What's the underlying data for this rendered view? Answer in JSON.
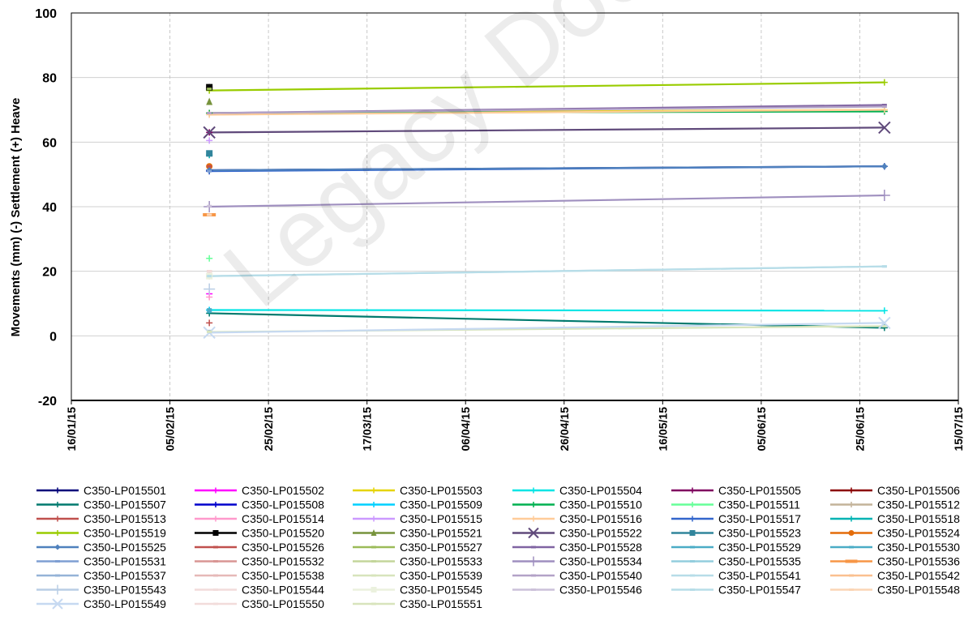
{
  "watermark_text": "Legacy Document",
  "chart_data": {
    "type": "line",
    "title": "",
    "xlabel": "",
    "ylabel": "Movements (mm) (-) Settlement (+) Heave",
    "ylim": [
      -20,
      100
    ],
    "yticks": [
      "-20",
      "0",
      "20",
      "40",
      "60",
      "80",
      "100"
    ],
    "xlim": [
      "2015-01-16",
      "2015-07-15"
    ],
    "xticks": [
      "16/01/15",
      "05/02/15",
      "25/02/15",
      "17/03/15",
      "06/04/15",
      "26/04/15",
      "16/05/15",
      "05/06/15",
      "25/06/15",
      "15/07/15"
    ],
    "grid": true,
    "legend_position": "bottom",
    "series": [
      {
        "name": "C350-LP015501",
        "color": "#00007a",
        "marker": "plus",
        "data": [
          [
            "2015-02-13",
            51.3
          ],
          [
            "2015-06-30",
            52.5
          ]
        ]
      },
      {
        "name": "C350-LP015502",
        "color": "#ff00ff",
        "marker": "plus",
        "data": [
          [
            "2015-02-13",
            13.0
          ]
        ]
      },
      {
        "name": "C350-LP015503",
        "color": "#e6d400",
        "marker": "plus",
        "data": [
          [
            "2015-02-13",
            69.0
          ],
          [
            "2015-06-30",
            70.0
          ]
        ]
      },
      {
        "name": "C350-LP015504",
        "color": "#00e5e5",
        "marker": "plus",
        "data": [
          [
            "2015-02-13",
            8.0
          ],
          [
            "2015-06-30",
            7.8
          ]
        ]
      },
      {
        "name": "C350-LP015505",
        "color": "#800060",
        "marker": "plus",
        "data": [
          [
            "2015-02-13",
            63.0
          ]
        ]
      },
      {
        "name": "C350-LP015506",
        "color": "#8b0000",
        "marker": "plus",
        "data": [
          [
            "2015-02-13",
            77.0
          ]
        ]
      },
      {
        "name": "C350-LP015507",
        "color": "#007a6e",
        "marker": "plus",
        "data": [
          [
            "2015-02-13",
            7.0
          ],
          [
            "2015-06-30",
            2.5
          ]
        ]
      },
      {
        "name": "C350-LP015508",
        "color": "#0000cc",
        "marker": "plus",
        "data": [
          [
            "2015-02-13",
            51.0
          ]
        ]
      },
      {
        "name": "C350-LP015509",
        "color": "#00d0ff",
        "marker": "plus",
        "data": [
          [
            "2015-02-13",
            8.0
          ]
        ]
      },
      {
        "name": "C350-LP015510",
        "color": "#00b050",
        "marker": "plus",
        "data": [
          [
            "2015-02-13",
            69.0
          ],
          [
            "2015-06-30",
            69.5
          ]
        ]
      },
      {
        "name": "C350-LP015511",
        "color": "#66ff99",
        "marker": "plus",
        "data": [
          [
            "2015-02-13",
            24.0
          ]
        ]
      },
      {
        "name": "C350-LP015512",
        "color": "#c4b49a",
        "marker": "plus",
        "data": [
          [
            "2015-02-13",
            18.5
          ]
        ]
      },
      {
        "name": "C350-LP015513",
        "color": "#c0504d",
        "marker": "plus",
        "data": [
          [
            "2015-02-13",
            4.0
          ]
        ]
      },
      {
        "name": "C350-LP015514",
        "color": "#ff99cc",
        "marker": "plus",
        "data": [
          [
            "2015-02-13",
            12.0
          ]
        ]
      },
      {
        "name": "C350-LP015515",
        "color": "#cc99ff",
        "marker": "plus",
        "data": [
          [
            "2015-02-13",
            60.5
          ]
        ]
      },
      {
        "name": "C350-LP015516",
        "color": "#ffcc99",
        "marker": "plus",
        "data": [
          [
            "2015-02-13",
            68.5
          ],
          [
            "2015-06-30",
            70.0
          ]
        ]
      },
      {
        "name": "C350-LP015517",
        "color": "#3366cc",
        "marker": "plus",
        "data": [
          [
            "2015-02-13",
            51.0
          ],
          [
            "2015-06-30",
            52.5
          ]
        ]
      },
      {
        "name": "C350-LP015518",
        "color": "#00b3b3",
        "marker": "plus",
        "data": [
          [
            "2015-02-13",
            56.0
          ]
        ]
      },
      {
        "name": "C350-LP015519",
        "color": "#99cc00",
        "marker": "plus",
        "data": [
          [
            "2015-02-13",
            76.0
          ],
          [
            "2015-06-30",
            78.5
          ]
        ]
      },
      {
        "name": "C350-LP015520",
        "color": "#000000",
        "marker": "square",
        "data": [
          [
            "2015-02-13",
            77.0
          ]
        ]
      },
      {
        "name": "C350-LP015521",
        "color": "#77933c",
        "marker": "triangle",
        "data": [
          [
            "2015-02-13",
            72.5
          ]
        ]
      },
      {
        "name": "C350-LP015522",
        "color": "#604a7b",
        "marker": "x",
        "data": [
          [
            "2015-02-13",
            63.0
          ],
          [
            "2015-06-30",
            64.5
          ]
        ]
      },
      {
        "name": "C350-LP015523",
        "color": "#31859c",
        "marker": "square",
        "data": [
          [
            "2015-02-13",
            56.5
          ]
        ]
      },
      {
        "name": "C350-LP015524",
        "color": "#e46c0a",
        "marker": "circle",
        "data": [
          [
            "2015-02-13",
            52.5
          ]
        ]
      },
      {
        "name": "C350-LP015525",
        "color": "#4f81bd",
        "marker": "diamond",
        "data": [
          [
            "2015-02-13",
            51.3
          ],
          [
            "2015-06-30",
            52.5
          ]
        ]
      },
      {
        "name": "C350-LP015526",
        "color": "#c0504d",
        "marker": "none",
        "data": [
          [
            "2015-02-13",
            52.5
          ]
        ]
      },
      {
        "name": "C350-LP015527",
        "color": "#9bbb59",
        "marker": "none",
        "data": [
          [
            "2015-02-13",
            76.5
          ]
        ]
      },
      {
        "name": "C350-LP015528",
        "color": "#8064a2",
        "marker": "none",
        "data": [
          [
            "2015-02-13",
            69.0
          ],
          [
            "2015-06-30",
            71.5
          ]
        ]
      },
      {
        "name": "C350-LP015529",
        "color": "#4bacc6",
        "marker": "none",
        "data": [
          [
            "2015-02-13",
            8.2
          ]
        ]
      },
      {
        "name": "C350-LP015530",
        "color": "#4aacc6",
        "marker": "none",
        "data": [
          [
            "2015-02-13",
            7.5
          ]
        ]
      },
      {
        "name": "C350-LP015531",
        "color": "#7f9fd3",
        "marker": "none",
        "data": [
          [
            "2015-02-13",
            51.0
          ]
        ]
      },
      {
        "name": "C350-LP015532",
        "color": "#d99694",
        "marker": "none",
        "data": [
          [
            "2015-02-13",
            20.0
          ]
        ]
      },
      {
        "name": "C350-LP015533",
        "color": "#c3d69b",
        "marker": "none",
        "data": [
          [
            "2015-02-13",
            18.3
          ]
        ]
      },
      {
        "name": "C350-LP015534",
        "color": "#9f8fbf",
        "marker": "plus",
        "data": [
          [
            "2015-02-13",
            40.0
          ],
          [
            "2015-06-30",
            43.5
          ]
        ]
      },
      {
        "name": "C350-LP015535",
        "color": "#93cddd",
        "marker": "none",
        "data": [
          [
            "2015-02-13",
            18.5
          ]
        ]
      },
      {
        "name": "C350-LP015536",
        "color": "#f79646",
        "marker": "dash",
        "data": [
          [
            "2015-02-13",
            37.5
          ]
        ]
      },
      {
        "name": "C350-LP015537",
        "color": "#95b3d7",
        "marker": "none",
        "data": [
          [
            "2015-02-13",
            1.5
          ]
        ]
      },
      {
        "name": "C350-LP015538",
        "color": "#e6b9b8",
        "marker": "none",
        "data": [
          [
            "2015-02-13",
            20.0
          ]
        ]
      },
      {
        "name": "C350-LP015539",
        "color": "#d7e4bc",
        "marker": "none",
        "data": [
          [
            "2015-02-13",
            1.2
          ],
          [
            "2015-06-30",
            3.0
          ]
        ]
      },
      {
        "name": "C350-LP015540",
        "color": "#b3a2c7",
        "marker": "none",
        "data": [
          [
            "2015-02-13",
            69.0
          ],
          [
            "2015-06-30",
            71.0
          ]
        ]
      },
      {
        "name": "C350-LP015541",
        "color": "#b7dde8",
        "marker": "none",
        "data": [
          [
            "2015-02-13",
            18.5
          ],
          [
            "2015-06-30",
            21.5
          ]
        ]
      },
      {
        "name": "C350-LP015542",
        "color": "#fac090",
        "marker": "none",
        "data": [
          [
            "2015-02-13",
            37.5
          ]
        ]
      },
      {
        "name": "C350-LP015543",
        "color": "#b9cde5",
        "marker": "plus",
        "data": [
          [
            "2015-02-13",
            14.5
          ]
        ]
      },
      {
        "name": "C350-LP015544",
        "color": "#f2dcdb",
        "marker": "none",
        "data": [
          [
            "2015-02-13",
            20.0
          ]
        ]
      },
      {
        "name": "C350-LP015545",
        "color": "#ebf1de",
        "marker": "square",
        "data": [
          [
            "2015-02-13",
            18.5
          ]
        ]
      },
      {
        "name": "C350-LP015546",
        "color": "#ccc1da",
        "marker": "none",
        "data": [
          [
            "2015-02-13",
            40.2
          ]
        ]
      },
      {
        "name": "C350-LP015547",
        "color": "#b7dde8",
        "marker": "none",
        "data": [
          [
            "2015-02-13",
            18.5
          ],
          [
            "2015-06-30",
            21.5
          ]
        ]
      },
      {
        "name": "C350-LP015548",
        "color": "#fbd5b5",
        "marker": "none",
        "data": [
          [
            "2015-02-13",
            37.5
          ]
        ]
      },
      {
        "name": "C350-LP015549",
        "color": "#c6d9f1",
        "marker": "x",
        "data": [
          [
            "2015-02-13",
            1.0
          ],
          [
            "2015-06-30",
            4.0
          ]
        ]
      },
      {
        "name": "C350-LP015550",
        "color": "#f2dcdb",
        "marker": "none",
        "data": [
          [
            "2015-02-13",
            20.0
          ]
        ]
      },
      {
        "name": "C350-LP015551",
        "color": "#d8e4bc",
        "marker": "none",
        "data": [
          [
            "2015-02-13",
            1.3
          ]
        ]
      }
    ]
  }
}
